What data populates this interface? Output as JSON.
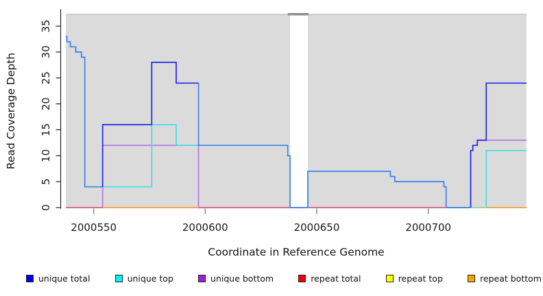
{
  "figure": {
    "xlabel": "Coordinate in Reference Genome",
    "ylabel": "Read Coverage Depth"
  },
  "chart_data": {
    "type": "line",
    "subtype": "step-coverage",
    "title": "",
    "xlabel": "Coordinate in Reference Genome",
    "ylabel": "Read Coverage Depth",
    "xlim": [
      2000537.5,
      2000744
    ],
    "ylim": [
      0,
      37.3
    ],
    "x_ticks": [
      2000550,
      2000600,
      2000650,
      2000700
    ],
    "y_ticks": [
      0,
      5,
      10,
      15,
      20,
      25,
      30,
      35
    ],
    "grid": false,
    "legend_position": "bottom",
    "background_panels": [
      {
        "from": 2000537.5,
        "to": 2000638
      },
      {
        "from": 2000646,
        "to": 2000744
      }
    ],
    "no_data_gap": {
      "from": 2000638,
      "to": 2000646
    },
    "gap_cap_bar": {
      "from": 2000637,
      "to": 2000646.3
    },
    "series": [
      {
        "name": "unique total",
        "legend_color": "#0000EE",
        "points": [
          [
            2000537,
            33
          ],
          [
            2000538,
            32
          ],
          [
            2000539.5,
            31
          ],
          [
            2000542,
            30
          ],
          [
            2000544.5,
            29
          ],
          [
            2000546,
            4
          ],
          [
            2000554,
            16
          ],
          [
            2000576,
            28
          ],
          [
            2000587,
            24
          ],
          [
            2000597,
            12
          ],
          [
            2000637,
            10
          ],
          [
            2000638,
            0
          ],
          [
            2000646,
            7
          ],
          [
            2000683,
            6
          ],
          [
            2000685,
            5
          ],
          [
            2000707,
            4
          ],
          [
            2000708,
            0
          ],
          [
            2000719,
            11
          ],
          [
            2000720,
            12
          ],
          [
            2000722,
            13
          ],
          [
            2000726,
            24
          ]
        ],
        "end": 2000744,
        "color_spans": [
          {
            "from": 2000537.5,
            "to": 2000554,
            "color": "#4480EC"
          },
          {
            "from": 2000554,
            "to": 2000597,
            "color": "#2525E8"
          },
          {
            "from": 2000597,
            "to": 2000719,
            "color": "#4480EC"
          },
          {
            "from": 2000719,
            "to": 2000744,
            "color": "#2525E8"
          }
        ]
      },
      {
        "name": "unique top",
        "legend_color": "#00F5F5",
        "line_color": "#3FDDE6",
        "points": [
          [
            2000537,
            33
          ],
          [
            2000538,
            32
          ],
          [
            2000539.5,
            31
          ],
          [
            2000542,
            30
          ],
          [
            2000544.5,
            29
          ],
          [
            2000546,
            4
          ],
          [
            2000576,
            16
          ],
          [
            2000587,
            12
          ],
          [
            2000637,
            10
          ],
          [
            2000638,
            0
          ],
          [
            2000646,
            7
          ],
          [
            2000683,
            6
          ],
          [
            2000685,
            5
          ],
          [
            2000707,
            4
          ],
          [
            2000708,
            0
          ],
          [
            2000726,
            11
          ]
        ],
        "end": 2000744
      },
      {
        "name": "unique bottom",
        "legend_color": "#9C1FD8",
        "line_color": "#B273E2",
        "points": [
          [
            2000537,
            0
          ],
          [
            2000554,
            12
          ],
          [
            2000597,
            0
          ],
          [
            2000719,
            11
          ],
          [
            2000720,
            12
          ],
          [
            2000722,
            13
          ]
        ],
        "end": 2000744
      },
      {
        "name": "repeat total",
        "legend_color": "#F00000",
        "line_color": "#E0537A",
        "points": [
          [
            2000537,
            0
          ]
        ],
        "end": 2000744
      },
      {
        "name": "repeat top",
        "legend_color": "#FFFF00",
        "line_color": "#E8E840",
        "points": [
          [
            2000537,
            0
          ]
        ],
        "end": 2000744
      },
      {
        "name": "repeat bottom",
        "legend_color": "#FFA500",
        "line_color": "#FFA128",
        "points": [
          [
            2000537,
            0
          ]
        ],
        "end": 2000744
      }
    ],
    "baseline_visible_segments": [
      {
        "color": "#E0537A",
        "from": 2000537.5,
        "to": 2000744
      },
      {
        "color": "#FFA128",
        "from": 2000554,
        "to": 2000597
      },
      {
        "color": "#9CD9A6",
        "from": 2000719,
        "to": 2000726
      },
      {
        "color": "#FFA128",
        "from": 2000726,
        "to": 2000744
      }
    ]
  },
  "legend": {
    "items": [
      {
        "label": "unique total",
        "color": "#0000EE"
      },
      {
        "label": "unique top",
        "color": "#00F5F5"
      },
      {
        "label": "unique bottom",
        "color": "#9C1FD8"
      },
      {
        "label": "repeat total",
        "color": "#F00000"
      },
      {
        "label": "repeat top",
        "color": "#FFFF00"
      },
      {
        "label": "repeat bottom",
        "color": "#FFA500"
      }
    ]
  },
  "colors": {
    "panel_gray": "#DBDBDB",
    "panel_top_line": "#C3C3C3",
    "gap_cap_bar": "#8F8F8F",
    "axis_line": "#222222",
    "y_tick": "#222222",
    "x_tick": "#777777",
    "tick_label": "#1a1a1a",
    "axis_title": "#111111"
  }
}
